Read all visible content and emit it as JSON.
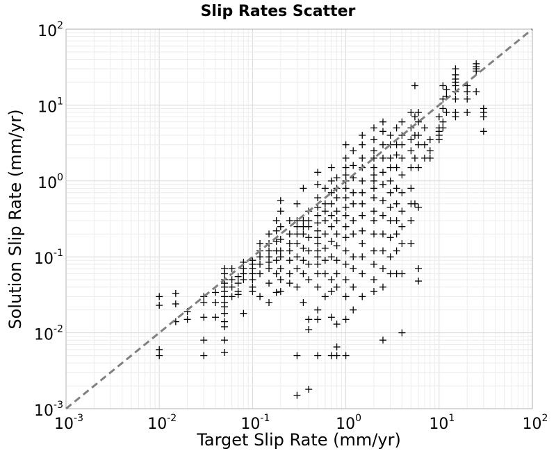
{
  "chart_data": {
    "type": "scatter",
    "title": "Slip Rates Scatter",
    "xlabel": "Target Slip Rate (mm/yr)",
    "ylabel": "Solution Slip Rate (mm/yr)",
    "xscale": "log",
    "yscale": "log",
    "xlim": [
      0.001,
      100
    ],
    "ylim": [
      0.001,
      100
    ],
    "grid": true,
    "marker": "+",
    "marker_color": "#000000",
    "reference_line": {
      "style": "dashed",
      "color": "#808080",
      "from": [
        0.001,
        0.001
      ],
      "to": [
        100,
        100
      ]
    },
    "x_ticks": [
      {
        "base": "10",
        "exp": "-3",
        "value": 0.001
      },
      {
        "base": "10",
        "exp": "-2",
        "value": 0.01
      },
      {
        "base": "10",
        "exp": "-1",
        "value": 0.1
      },
      {
        "base": "10",
        "exp": "0",
        "value": 1
      },
      {
        "base": "10",
        "exp": "1",
        "value": 10
      },
      {
        "base": "10",
        "exp": "2",
        "value": 100
      }
    ],
    "y_ticks": [
      {
        "base": "10",
        "exp": "-3",
        "value": 0.001
      },
      {
        "base": "10",
        "exp": "-2",
        "value": 0.01
      },
      {
        "base": "10",
        "exp": "-1",
        "value": 0.1
      },
      {
        "base": "10",
        "exp": "0",
        "value": 1
      },
      {
        "base": "10",
        "exp": "1",
        "value": 10
      },
      {
        "base": "10",
        "exp": "2",
        "value": 100
      }
    ],
    "points": [
      [
        0.01,
        0.03
      ],
      [
        0.01,
        0.023
      ],
      [
        0.01,
        0.006
      ],
      [
        0.01,
        0.005
      ],
      [
        0.015,
        0.033
      ],
      [
        0.015,
        0.024
      ],
      [
        0.015,
        0.014
      ],
      [
        0.02,
        0.019
      ],
      [
        0.02,
        0.015
      ],
      [
        0.03,
        0.03
      ],
      [
        0.03,
        0.025
      ],
      [
        0.03,
        0.016
      ],
      [
        0.03,
        0.008
      ],
      [
        0.03,
        0.005
      ],
      [
        0.04,
        0.034
      ],
      [
        0.04,
        0.025
      ],
      [
        0.04,
        0.016
      ],
      [
        0.05,
        0.07
      ],
      [
        0.05,
        0.06
      ],
      [
        0.05,
        0.05
      ],
      [
        0.05,
        0.045
      ],
      [
        0.05,
        0.04
      ],
      [
        0.05,
        0.035
      ],
      [
        0.05,
        0.03
      ],
      [
        0.05,
        0.025
      ],
      [
        0.05,
        0.022
      ],
      [
        0.05,
        0.018
      ],
      [
        0.05,
        0.014
      ],
      [
        0.05,
        0.012
      ],
      [
        0.05,
        0.008
      ],
      [
        0.05,
        0.0055
      ],
      [
        0.06,
        0.07
      ],
      [
        0.06,
        0.05
      ],
      [
        0.06,
        0.04
      ],
      [
        0.06,
        0.03
      ],
      [
        0.07,
        0.055
      ],
      [
        0.07,
        0.045
      ],
      [
        0.07,
        0.035
      ],
      [
        0.07,
        0.032
      ],
      [
        0.08,
        0.085
      ],
      [
        0.08,
        0.07
      ],
      [
        0.08,
        0.06
      ],
      [
        0.08,
        0.05
      ],
      [
        0.08,
        0.018
      ],
      [
        0.1,
        0.09
      ],
      [
        0.1,
        0.08
      ],
      [
        0.1,
        0.07
      ],
      [
        0.1,
        0.06
      ],
      [
        0.1,
        0.05
      ],
      [
        0.1,
        0.04
      ],
      [
        0.1,
        0.035
      ],
      [
        0.12,
        0.15
      ],
      [
        0.12,
        0.12
      ],
      [
        0.12,
        0.1
      ],
      [
        0.12,
        0.08
      ],
      [
        0.12,
        0.06
      ],
      [
        0.12,
        0.03
      ],
      [
        0.15,
        0.2
      ],
      [
        0.15,
        0.15
      ],
      [
        0.15,
        0.12
      ],
      [
        0.15,
        0.1
      ],
      [
        0.15,
        0.085
      ],
      [
        0.15,
        0.07
      ],
      [
        0.15,
        0.045
      ],
      [
        0.15,
        0.025
      ],
      [
        0.18,
        0.3
      ],
      [
        0.18,
        0.22
      ],
      [
        0.18,
        0.16
      ],
      [
        0.18,
        0.12
      ],
      [
        0.18,
        0.09
      ],
      [
        0.18,
        0.06
      ],
      [
        0.18,
        0.034
      ],
      [
        0.2,
        0.55
      ],
      [
        0.2,
        0.4
      ],
      [
        0.2,
        0.25
      ],
      [
        0.2,
        0.17
      ],
      [
        0.2,
        0.12
      ],
      [
        0.2,
        0.1
      ],
      [
        0.2,
        0.07
      ],
      [
        0.2,
        0.05
      ],
      [
        0.2,
        0.035
      ],
      [
        0.25,
        0.3
      ],
      [
        0.25,
        0.2
      ],
      [
        0.25,
        0.15
      ],
      [
        0.25,
        0.12
      ],
      [
        0.25,
        0.09
      ],
      [
        0.25,
        0.06
      ],
      [
        0.25,
        0.045
      ],
      [
        0.3,
        0.5
      ],
      [
        0.3,
        0.3
      ],
      [
        0.3,
        0.25
      ],
      [
        0.3,
        0.2
      ],
      [
        0.3,
        0.15
      ],
      [
        0.3,
        0.1
      ],
      [
        0.3,
        0.07
      ],
      [
        0.3,
        0.04
      ],
      [
        0.3,
        0.005
      ],
      [
        0.3,
        0.0015
      ],
      [
        0.35,
        0.8
      ],
      [
        0.35,
        0.3
      ],
      [
        0.35,
        0.25
      ],
      [
        0.35,
        0.2
      ],
      [
        0.35,
        0.13
      ],
      [
        0.35,
        0.09
      ],
      [
        0.35,
        0.06
      ],
      [
        0.35,
        0.025
      ],
      [
        0.4,
        0.4
      ],
      [
        0.4,
        0.3
      ],
      [
        0.4,
        0.25
      ],
      [
        0.4,
        0.18
      ],
      [
        0.4,
        0.12
      ],
      [
        0.4,
        0.08
      ],
      [
        0.4,
        0.05
      ],
      [
        0.4,
        0.015
      ],
      [
        0.4,
        0.011
      ],
      [
        0.4,
        0.0018
      ],
      [
        0.5,
        1.3
      ],
      [
        0.5,
        0.9
      ],
      [
        0.5,
        0.6
      ],
      [
        0.5,
        0.45
      ],
      [
        0.5,
        0.35
      ],
      [
        0.5,
        0.28
      ],
      [
        0.5,
        0.22
      ],
      [
        0.5,
        0.18
      ],
      [
        0.5,
        0.15
      ],
      [
        0.5,
        0.12
      ],
      [
        0.5,
        0.1
      ],
      [
        0.5,
        0.08
      ],
      [
        0.5,
        0.06
      ],
      [
        0.5,
        0.04
      ],
      [
        0.5,
        0.02
      ],
      [
        0.5,
        0.015
      ],
      [
        0.5,
        0.005
      ],
      [
        0.6,
        0.8
      ],
      [
        0.6,
        0.5
      ],
      [
        0.6,
        0.4
      ],
      [
        0.6,
        0.3
      ],
      [
        0.6,
        0.2
      ],
      [
        0.6,
        0.13
      ],
      [
        0.6,
        0.09
      ],
      [
        0.6,
        0.06
      ],
      [
        0.6,
        0.03
      ],
      [
        0.7,
        1.5
      ],
      [
        0.7,
        1
      ],
      [
        0.7,
        0.7
      ],
      [
        0.7,
        0.5
      ],
      [
        0.7,
        0.35
      ],
      [
        0.7,
        0.25
      ],
      [
        0.7,
        0.16
      ],
      [
        0.7,
        0.1
      ],
      [
        0.7,
        0.05
      ],
      [
        0.7,
        0.035
      ],
      [
        0.7,
        0.016
      ],
      [
        0.7,
        0.005
      ],
      [
        0.8,
        1.1
      ],
      [
        0.8,
        0.8
      ],
      [
        0.8,
        0.6
      ],
      [
        0.8,
        0.4
      ],
      [
        0.8,
        0.3
      ],
      [
        0.8,
        0.2
      ],
      [
        0.8,
        0.14
      ],
      [
        0.8,
        0.09
      ],
      [
        0.8,
        0.06
      ],
      [
        0.8,
        0.04
      ],
      [
        0.8,
        0.013
      ],
      [
        0.8,
        0.0065
      ],
      [
        0.8,
        0.005
      ],
      [
        1,
        3
      ],
      [
        1,
        2
      ],
      [
        1,
        1.5
      ],
      [
        1,
        1.2
      ],
      [
        1,
        1
      ],
      [
        1,
        0.8
      ],
      [
        1,
        0.6
      ],
      [
        1,
        0.45
      ],
      [
        1,
        0.35
      ],
      [
        1,
        0.25
      ],
      [
        1,
        0.18
      ],
      [
        1,
        0.12
      ],
      [
        1,
        0.08
      ],
      [
        1,
        0.05
      ],
      [
        1,
        0.03
      ],
      [
        1,
        0.015
      ],
      [
        1,
        0.005
      ],
      [
        1.2,
        2.5
      ],
      [
        1.2,
        1.6
      ],
      [
        1.2,
        1.1
      ],
      [
        1.2,
        0.7
      ],
      [
        1.2,
        0.5
      ],
      [
        1.2,
        0.3
      ],
      [
        1.2,
        0.2
      ],
      [
        1.2,
        0.1
      ],
      [
        1.2,
        0.07
      ],
      [
        1.2,
        0.04
      ],
      [
        1.2,
        0.02
      ],
      [
        1.5,
        4
      ],
      [
        1.5,
        3
      ],
      [
        1.5,
        2
      ],
      [
        1.5,
        1.5
      ],
      [
        1.5,
        1
      ],
      [
        1.5,
        0.7
      ],
      [
        1.5,
        0.5
      ],
      [
        1.5,
        0.35
      ],
      [
        1.5,
        0.22
      ],
      [
        1.5,
        0.15
      ],
      [
        1.5,
        0.1
      ],
      [
        1.5,
        0.06
      ],
      [
        1.5,
        0.03
      ],
      [
        2,
        5
      ],
      [
        2,
        3.5
      ],
      [
        2,
        2.5
      ],
      [
        2,
        2
      ],
      [
        2,
        1.5
      ],
      [
        2,
        1.2
      ],
      [
        2,
        1
      ],
      [
        2,
        0.8
      ],
      [
        2,
        0.6
      ],
      [
        2,
        0.4
      ],
      [
        2,
        0.3
      ],
      [
        2,
        0.2
      ],
      [
        2,
        0.12
      ],
      [
        2,
        0.08
      ],
      [
        2,
        0.05
      ],
      [
        2,
        0.035
      ],
      [
        2.5,
        6
      ],
      [
        2.5,
        4.5
      ],
      [
        2.5,
        3
      ],
      [
        2.5,
        2
      ],
      [
        2.5,
        1.3
      ],
      [
        2.5,
        0.9
      ],
      [
        2.5,
        0.55
      ],
      [
        2.5,
        0.35
      ],
      [
        2.5,
        0.2
      ],
      [
        2.5,
        0.12
      ],
      [
        2.5,
        0.07
      ],
      [
        2.5,
        0.04
      ],
      [
        2.5,
        0.008
      ],
      [
        3,
        4
      ],
      [
        3,
        3
      ],
      [
        3,
        2
      ],
      [
        3,
        1.5
      ],
      [
        3,
        1
      ],
      [
        3,
        0.7
      ],
      [
        3,
        0.45
      ],
      [
        3,
        0.3
      ],
      [
        3,
        0.18
      ],
      [
        3,
        0.1
      ],
      [
        3,
        0.06
      ],
      [
        3.5,
        5
      ],
      [
        3.5,
        3
      ],
      [
        3.5,
        2.2
      ],
      [
        3.5,
        1.5
      ],
      [
        3.5,
        0.8
      ],
      [
        3.5,
        0.5
      ],
      [
        3.5,
        0.3
      ],
      [
        3.5,
        0.2
      ],
      [
        3.5,
        0.12
      ],
      [
        3.5,
        0.06
      ],
      [
        4,
        6
      ],
      [
        4,
        4
      ],
      [
        4,
        3
      ],
      [
        4,
        2
      ],
      [
        4,
        1.2
      ],
      [
        4,
        0.7
      ],
      [
        4,
        0.4
      ],
      [
        4,
        0.25
      ],
      [
        4,
        0.15
      ],
      [
        4,
        0.06
      ],
      [
        4,
        0.01
      ],
      [
        5,
        8
      ],
      [
        5,
        5
      ],
      [
        5,
        3.5
      ],
      [
        5,
        2.5
      ],
      [
        5,
        1.5
      ],
      [
        5,
        0.8
      ],
      [
        5,
        0.5
      ],
      [
        5,
        0.3
      ],
      [
        5,
        0.15
      ],
      [
        5.5,
        18
      ],
      [
        5.5,
        7
      ],
      [
        5.5,
        4
      ],
      [
        5.5,
        2
      ],
      [
        5.5,
        0.5
      ],
      [
        6,
        8
      ],
      [
        6,
        6
      ],
      [
        6,
        4
      ],
      [
        6,
        3
      ],
      [
        6,
        1.5
      ],
      [
        6,
        0.45
      ],
      [
        6,
        0.07
      ],
      [
        6,
        0.048
      ],
      [
        7,
        5
      ],
      [
        7,
        3
      ],
      [
        7,
        2
      ],
      [
        8,
        3.5
      ],
      [
        8,
        2.5
      ],
      [
        8,
        2
      ],
      [
        10,
        7
      ],
      [
        10,
        5
      ],
      [
        10,
        4.5
      ],
      [
        10,
        4
      ],
      [
        10,
        3.5
      ],
      [
        11,
        18
      ],
      [
        11,
        12
      ],
      [
        11,
        9
      ],
      [
        11,
        6
      ],
      [
        11,
        5
      ],
      [
        12,
        16
      ],
      [
        12,
        13
      ],
      [
        12,
        8
      ],
      [
        15,
        30
      ],
      [
        15,
        25
      ],
      [
        15,
        22
      ],
      [
        15,
        20
      ],
      [
        15,
        18
      ],
      [
        15,
        15
      ],
      [
        15,
        12
      ],
      [
        15,
        8
      ],
      [
        15,
        7
      ],
      [
        20,
        18
      ],
      [
        20,
        15
      ],
      [
        20,
        12
      ],
      [
        20,
        8
      ],
      [
        25,
        35
      ],
      [
        25,
        32
      ],
      [
        25,
        30
      ],
      [
        25,
        28
      ],
      [
        25,
        15
      ],
      [
        30,
        9
      ],
      [
        30,
        8
      ],
      [
        30,
        7
      ],
      [
        30,
        4.5
      ]
    ]
  }
}
